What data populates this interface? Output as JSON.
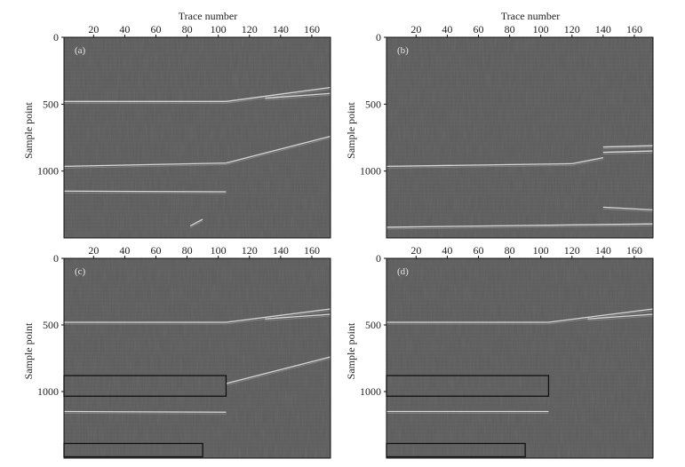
{
  "panels": [
    {
      "label": "(a)",
      "xlabel": "Trace number",
      "ylabel": "Sample point",
      "xticks": [
        "20",
        "40",
        "60",
        "80",
        "100",
        "120",
        "140",
        "160"
      ],
      "yticks": [
        "0",
        "500",
        "1000"
      ],
      "events": [
        {
          "type": "reflector",
          "from_trace": 1,
          "to_trace": 105,
          "sample_start": 480,
          "sample_end": 480
        },
        {
          "type": "reflector",
          "from_trace": 105,
          "to_trace": 172,
          "sample_start": 480,
          "sample_end": 375
        },
        {
          "type": "reflector",
          "from_trace": 130,
          "to_trace": 172,
          "sample_start": 455,
          "sample_end": 420
        },
        {
          "type": "reflector",
          "from_trace": 1,
          "to_trace": 105,
          "sample_start": 965,
          "sample_end": 940
        },
        {
          "type": "reflector",
          "from_trace": 105,
          "to_trace": 172,
          "sample_start": 940,
          "sample_end": 740
        },
        {
          "type": "reflector",
          "from_trace": 1,
          "to_trace": 105,
          "sample_start": 1150,
          "sample_end": 1155
        },
        {
          "type": "reflector",
          "from_trace": 82,
          "to_trace": 90,
          "sample_start": 1410,
          "sample_end": 1360
        }
      ],
      "boxes": []
    },
    {
      "label": "(b)",
      "xlabel": "Trace number",
      "ylabel": "Sample point",
      "xticks": [
        "20",
        "40",
        "60",
        "80",
        "100",
        "120",
        "140",
        "160"
      ],
      "yticks": [
        "0",
        "500",
        "1000"
      ],
      "events": [
        {
          "type": "reflector",
          "from_trace": 1,
          "to_trace": 120,
          "sample_start": 965,
          "sample_end": 945
        },
        {
          "type": "reflector",
          "from_trace": 120,
          "to_trace": 140,
          "sample_start": 945,
          "sample_end": 900
        },
        {
          "type": "reflector",
          "from_trace": 140,
          "to_trace": 172,
          "sample_start": 820,
          "sample_end": 810
        },
        {
          "type": "reflector",
          "from_trace": 140,
          "to_trace": 172,
          "sample_start": 860,
          "sample_end": 850
        },
        {
          "type": "reflector",
          "from_trace": 140,
          "to_trace": 172,
          "sample_start": 1270,
          "sample_end": 1290
        },
        {
          "type": "reflector",
          "from_trace": 1,
          "to_trace": 172,
          "sample_start": 1420,
          "sample_end": 1395
        }
      ],
      "boxes": []
    },
    {
      "label": "(c)",
      "xlabel": "",
      "ylabel": "Sample point",
      "xticks": [
        "20",
        "40",
        "60",
        "80",
        "100",
        "120",
        "140",
        "160"
      ],
      "yticks": [
        "0",
        "500",
        "1000"
      ],
      "events": [
        {
          "type": "reflector",
          "from_trace": 1,
          "to_trace": 105,
          "sample_start": 480,
          "sample_end": 480
        },
        {
          "type": "reflector",
          "from_trace": 105,
          "to_trace": 172,
          "sample_start": 480,
          "sample_end": 380
        },
        {
          "type": "reflector",
          "from_trace": 130,
          "to_trace": 172,
          "sample_start": 455,
          "sample_end": 420
        },
        {
          "type": "reflector",
          "from_trace": 105,
          "to_trace": 172,
          "sample_start": 940,
          "sample_end": 740
        },
        {
          "type": "reflector",
          "from_trace": 1,
          "to_trace": 105,
          "sample_start": 1150,
          "sample_end": 1155
        }
      ],
      "boxes": [
        {
          "trace_start": 1,
          "trace_end": 105,
          "sample_start": 880,
          "sample_end": 1035
        },
        {
          "trace_start": 1,
          "trace_end": 90,
          "sample_start": 1390,
          "sample_end": 1490
        }
      ]
    },
    {
      "label": "(d)",
      "xlabel": "",
      "ylabel": "Sample point",
      "xticks": [
        "20",
        "40",
        "60",
        "80",
        "100",
        "120",
        "140",
        "160"
      ],
      "yticks": [
        "0",
        "500",
        "1000"
      ],
      "events": [
        {
          "type": "reflector",
          "from_trace": 1,
          "to_trace": 105,
          "sample_start": 480,
          "sample_end": 480
        },
        {
          "type": "reflector",
          "from_trace": 105,
          "to_trace": 172,
          "sample_start": 480,
          "sample_end": 380
        },
        {
          "type": "reflector",
          "from_trace": 130,
          "to_trace": 172,
          "sample_start": 455,
          "sample_end": 420
        },
        {
          "type": "reflector",
          "from_trace": 1,
          "to_trace": 105,
          "sample_start": 1150,
          "sample_end": 1150
        }
      ],
      "boxes": [
        {
          "trace_start": 1,
          "trace_end": 105,
          "sample_start": 880,
          "sample_end": 1035
        },
        {
          "trace_start": 1,
          "trace_end": 90,
          "sample_start": 1390,
          "sample_end": 1490
        }
      ]
    }
  ],
  "axis": {
    "trace_range": [
      1,
      172
    ],
    "sample_range": [
      0,
      1500
    ],
    "tick_trace_values": [
      20,
      40,
      60,
      80,
      100,
      120,
      140,
      160
    ],
    "tick_sample_values": [
      0,
      500,
      1000
    ]
  },
  "colors": {
    "background": "#5c5c5c",
    "event": "#e6e6e6",
    "box": "#111111"
  }
}
